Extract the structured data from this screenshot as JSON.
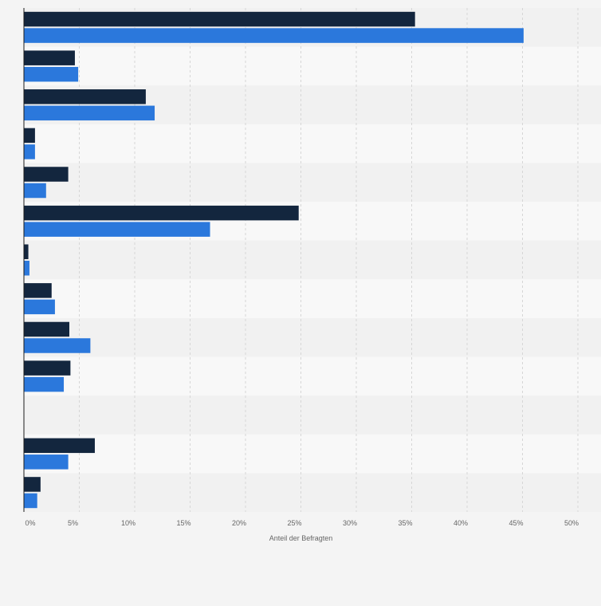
{
  "chart_data": {
    "type": "bar",
    "orientation": "horizontal",
    "categories": [
      "",
      "",
      "",
      "",
      "",
      "",
      "",
      "",
      "",
      "",
      "",
      "",
      ""
    ],
    "series": [
      {
        "values": [
          35.3,
          4.6,
          11.0,
          1.0,
          4.0,
          24.8,
          0.4,
          2.5,
          4.1,
          4.2,
          0.0,
          6.4,
          1.5
        ]
      },
      {
        "values": [
          45.1,
          4.9,
          11.8,
          1.0,
          2.0,
          16.8,
          0.5,
          2.8,
          6.0,
          3.6,
          0.0,
          4.0,
          1.2
        ]
      }
    ],
    "xlabel": "Anteil der Befragten",
    "xlim": [
      0,
      50
    ],
    "x_ticks": [
      "0%",
      "5%",
      "10%",
      "15%",
      "20%",
      "25%",
      "30%",
      "35%",
      "40%",
      "45%",
      "50%"
    ],
    "grid": true,
    "legend": "none",
    "colors": {
      "series_1": "#13263e",
      "series_2": "#2b78dc",
      "band_light": "#f8f8f8",
      "band_dark": "#f1f1f1",
      "grid": "#d6d6d6",
      "axis": "#1a1a1a"
    }
  }
}
